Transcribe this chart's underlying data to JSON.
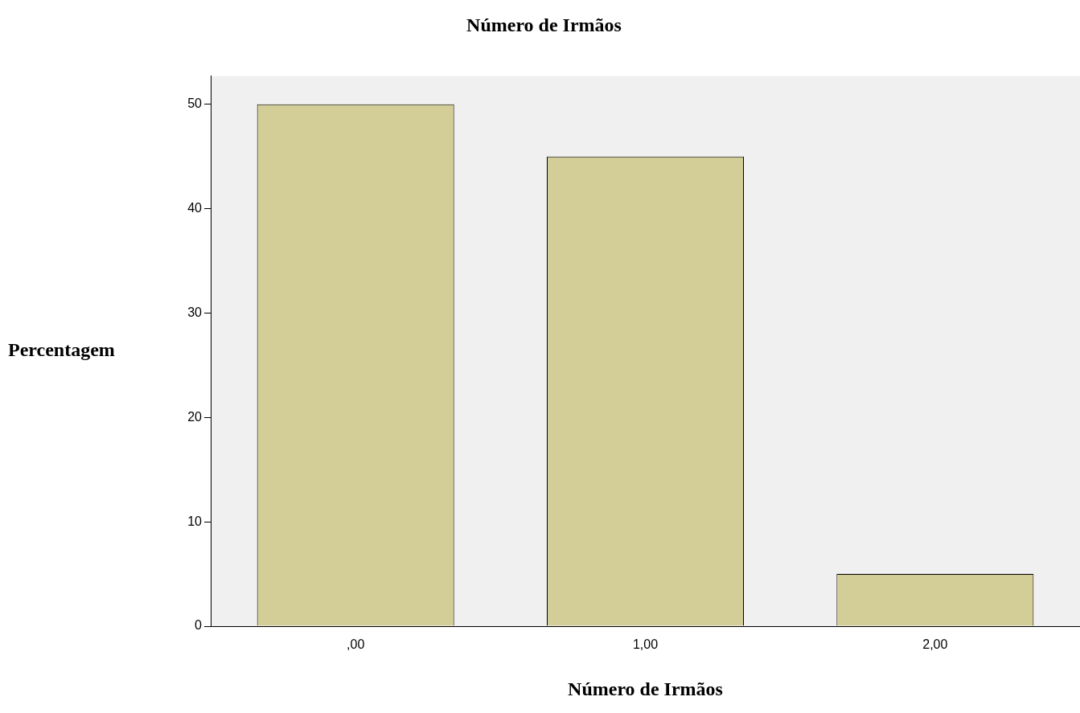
{
  "chart_data": {
    "type": "bar",
    "title": "Número de Irmãos",
    "xlabel": "Número de Irmãos",
    "ylabel": "Percentagem",
    "categories": [
      ",00",
      "1,00",
      "2,00"
    ],
    "values": [
      50,
      45,
      5
    ],
    "color": "#d3ce97",
    "ylim": [
      0,
      52.7
    ],
    "yticks": [
      0,
      10,
      20,
      30,
      40,
      50
    ],
    "grid": false,
    "legend": false
  }
}
